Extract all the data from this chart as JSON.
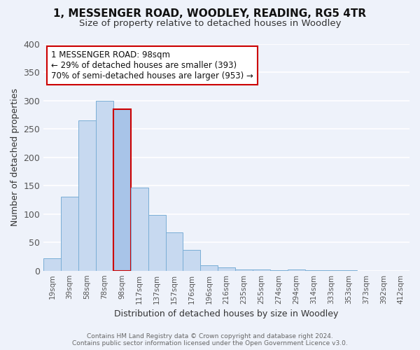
{
  "title": "1, MESSENGER ROAD, WOODLEY, READING, RG5 4TR",
  "subtitle": "Size of property relative to detached houses in Woodley",
  "xlabel": "Distribution of detached houses by size in Woodley",
  "ylabel": "Number of detached properties",
  "bar_labels": [
    "19sqm",
    "39sqm",
    "58sqm",
    "78sqm",
    "98sqm",
    "117sqm",
    "137sqm",
    "157sqm",
    "176sqm",
    "196sqm",
    "216sqm",
    "235sqm",
    "255sqm",
    "274sqm",
    "294sqm",
    "314sqm",
    "333sqm",
    "353sqm",
    "373sqm",
    "392sqm",
    "412sqm"
  ],
  "bar_values": [
    22,
    130,
    265,
    300,
    285,
    147,
    98,
    68,
    37,
    9,
    6,
    2,
    2,
    1,
    2,
    1,
    1,
    1,
    0,
    0,
    0
  ],
  "highlight_bar_index": 4,
  "bar_color_normal": "#c7d9f0",
  "bar_color_highlight": "#a8c4e8",
  "bar_edge_color": "#7aaed6",
  "highlight_bar_edge_color": "#cc0000",
  "ylim": [
    0,
    400
  ],
  "yticks": [
    0,
    50,
    100,
    150,
    200,
    250,
    300,
    350,
    400
  ],
  "annotation_title": "1 MESSENGER ROAD: 98sqm",
  "annotation_line1": "← 29% of detached houses are smaller (393)",
  "annotation_line2": "70% of semi-detached houses are larger (953) →",
  "annotation_box_color": "#ffffff",
  "annotation_box_edge": "#cc0000",
  "footer_line1": "Contains HM Land Registry data © Crown copyright and database right 2024.",
  "footer_line2": "Contains public sector information licensed under the Open Government Licence v3.0.",
  "bg_color": "#eef2fa",
  "plot_bg_color": "#eef2fa"
}
